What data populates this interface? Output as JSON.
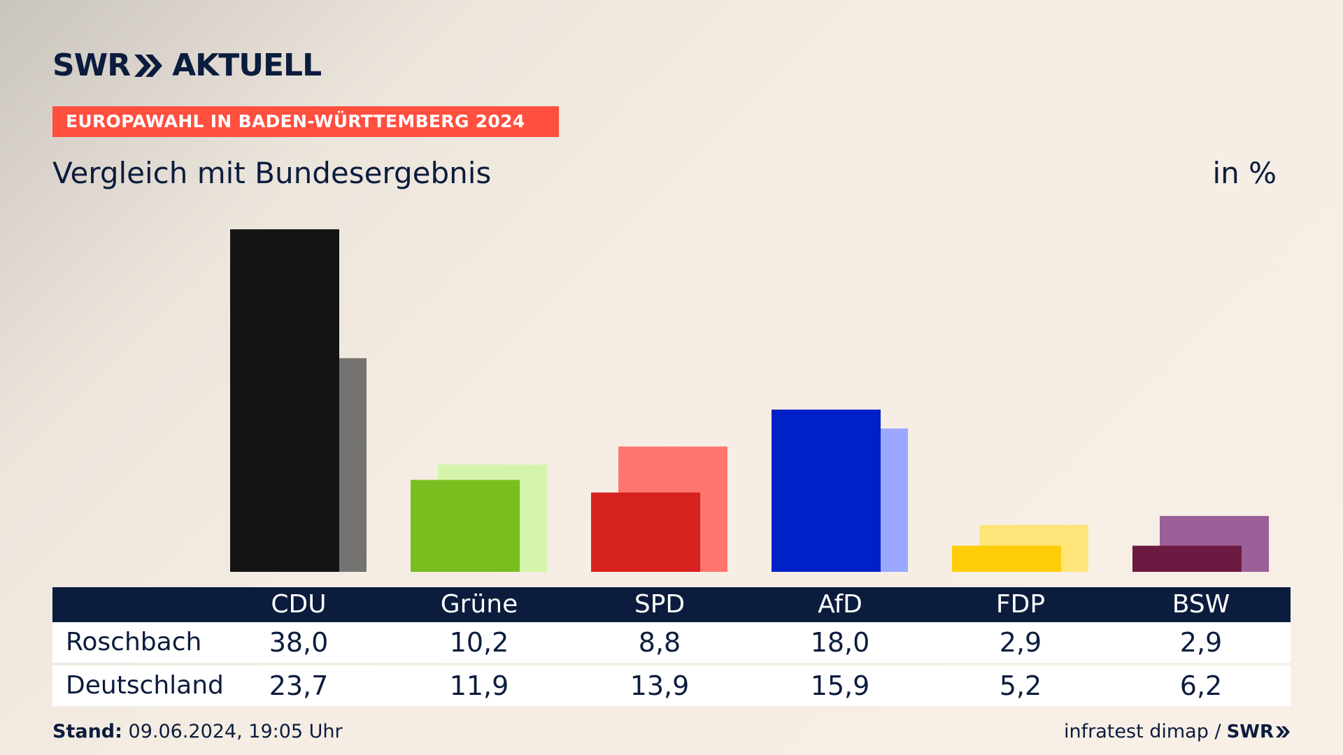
{
  "logo": {
    "left": "SWR",
    "right": "AKTUELL"
  },
  "badge": "EUROPAWAHL IN BADEN-WÜRTTEMBERG 2024",
  "subtitle": "Vergleich mit Bundesergebnis",
  "unit": "in %",
  "colors": {
    "navy": "#0b1c3d",
    "badge": "#ff4f3f",
    "parties_primary": [
      "#141414",
      "#78be1e",
      "#d6211f",
      "#0021c8",
      "#ffcd08",
      "#6b1b42"
    ],
    "parties_secondary": [
      "#757371",
      "#d6f5ac",
      "#ff7570",
      "#9ba8ff",
      "#ffe47a",
      "#9a6097"
    ]
  },
  "chart_data": {
    "type": "bar",
    "categories": [
      "CDU",
      "Grüne",
      "SPD",
      "AfD",
      "FDP",
      "BSW"
    ],
    "series": [
      {
        "name": "Roschbach",
        "values": [
          38.0,
          10.2,
          8.8,
          18.0,
          2.9,
          2.9
        ]
      },
      {
        "name": "Deutschland",
        "values": [
          23.7,
          11.9,
          13.9,
          15.9,
          5.2,
          6.2
        ]
      }
    ],
    "ylim": [
      0,
      38.0
    ],
    "grid": false,
    "legend": "table-below"
  },
  "table": {
    "headers": [
      "CDU",
      "Grüne",
      "SPD",
      "AfD",
      "FDP",
      "BSW"
    ],
    "rows": [
      {
        "label": "Roschbach",
        "values": [
          "38,0",
          "10,2",
          "8,8",
          "18,0",
          "2,9",
          "2,9"
        ]
      },
      {
        "label": "Deutschland",
        "values": [
          "23,7",
          "11,9",
          "13,9",
          "15,9",
          "5,2",
          "6,2"
        ]
      }
    ]
  },
  "footer": {
    "stand_label": "Stand:",
    "stand_value": "09.06.2024, 19:05 Uhr",
    "source": "infratest dimap /",
    "logo": "SWR"
  }
}
